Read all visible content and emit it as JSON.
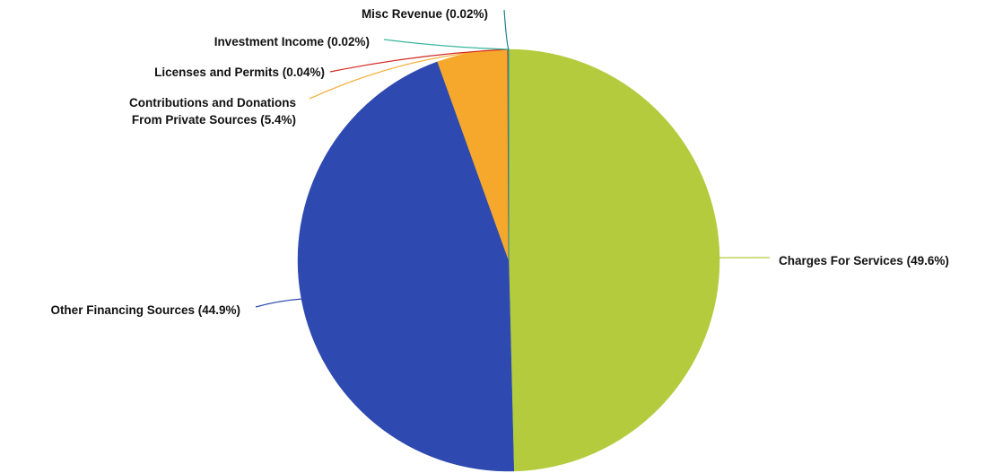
{
  "chart_data": {
    "type": "pie",
    "title": "",
    "slices": [
      {
        "name": "Charges For Services",
        "value": 49.6,
        "label": "Charges For Services (49.6%)",
        "color": "#b3cb3c"
      },
      {
        "name": "Other Financing Sources",
        "value": 44.9,
        "label": "Other Financing Sources (44.9%)",
        "color": "#2e49b0"
      },
      {
        "name": "Contributions and Donations From Private Sources",
        "value": 5.4,
        "label_lines": [
          "Contributions and Donations",
          "From Private Sources (5.4%)"
        ],
        "color": "#f5a82c"
      },
      {
        "name": "Licenses and Permits",
        "value": 0.04,
        "label": "Licenses and Permits (0.04%)",
        "color": "#d32a22"
      },
      {
        "name": "Investment Income",
        "value": 0.02,
        "label": "Investment Income (0.02%)",
        "color": "#3ab5a0"
      },
      {
        "name": "Misc Revenue",
        "value": 0.02,
        "label": "Misc Revenue (0.02%)",
        "color": "#1f7f90"
      }
    ]
  }
}
